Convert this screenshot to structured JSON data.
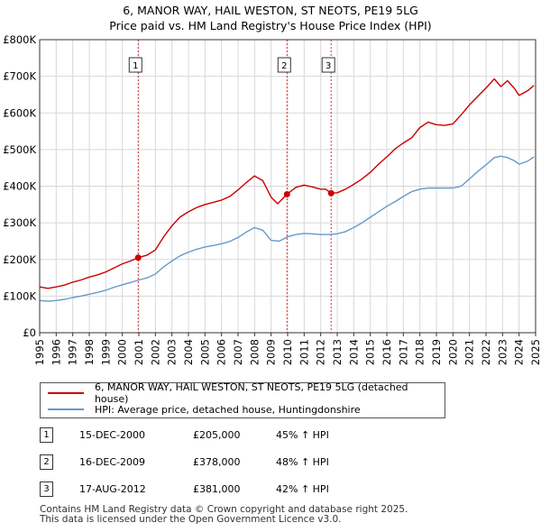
{
  "title": {
    "line1": "6, MANOR WAY, HAIL WESTON, ST NEOTS, PE19 5LG",
    "line2": "Price paid vs. HM Land Registry's House Price Index (HPI)"
  },
  "colors": {
    "property": "#cc0000",
    "hpi": "#6699cc",
    "vline": "#cc0000"
  },
  "chart_data": {
    "type": "line",
    "title": "6, MANOR WAY, HAIL WESTON, ST NEOTS, PE19 5LG — Price paid vs. HM Land Registry's House Price Index (HPI)",
    "xlabel": "",
    "ylabel": "",
    "xlim": [
      1995.0,
      2025.0
    ],
    "ylim": [
      0,
      800000
    ],
    "grid": true,
    "yticks": [
      {
        "value": 0,
        "label": "£0"
      },
      {
        "value": 100000,
        "label": "£100K"
      },
      {
        "value": 200000,
        "label": "£200K"
      },
      {
        "value": 300000,
        "label": "£300K"
      },
      {
        "value": 400000,
        "label": "£400K"
      },
      {
        "value": 500000,
        "label": "£500K"
      },
      {
        "value": 600000,
        "label": "£600K"
      },
      {
        "value": 700000,
        "label": "£700K"
      },
      {
        "value": 800000,
        "label": "£800K"
      }
    ],
    "xticks": [
      "1995",
      "1996",
      "1997",
      "1998",
      "1999",
      "2000",
      "2001",
      "2002",
      "2003",
      "2004",
      "2005",
      "2006",
      "2007",
      "2008",
      "2009",
      "2010",
      "2011",
      "2012",
      "2013",
      "2014",
      "2015",
      "2016",
      "2017",
      "2018",
      "2019",
      "2020",
      "2021",
      "2022",
      "2023",
      "2024",
      "2025"
    ],
    "series": [
      {
        "name": "6, MANOR WAY, HAIL WESTON, ST NEOTS, PE19 5LG (detached house)",
        "color": "#cc0000",
        "x": [
          1995.0,
          1995.5,
          1996.0,
          1996.5,
          1997.0,
          1997.5,
          1998.0,
          1998.5,
          1999.0,
          1999.5,
          2000.0,
          2000.5,
          2000.96,
          2001.5,
          2002.0,
          2002.5,
          2003.0,
          2003.5,
          2004.0,
          2004.5,
          2005.0,
          2005.5,
          2006.0,
          2006.5,
          2007.0,
          2007.5,
          2008.0,
          2008.5,
          2009.0,
          2009.4,
          2009.96,
          2010.5,
          2011.0,
          2011.5,
          2012.0,
          2012.3,
          2012.63,
          2013.0,
          2013.5,
          2014.0,
          2014.5,
          2015.0,
          2015.5,
          2016.0,
          2016.5,
          2017.0,
          2017.5,
          2018.0,
          2018.5,
          2019.0,
          2019.5,
          2020.0,
          2020.5,
          2021.0,
          2021.5,
          2022.0,
          2022.5,
          2022.9,
          2023.3,
          2023.7,
          2024.0,
          2024.5,
          2024.9
        ],
        "y": [
          125000,
          121000,
          125000,
          130000,
          138000,
          144000,
          152000,
          158000,
          166000,
          177000,
          188000,
          196000,
          205000,
          212000,
          226000,
          262000,
          292000,
          316000,
          330000,
          342000,
          350000,
          356000,
          362000,
          372000,
          390000,
          410000,
          428000,
          415000,
          370000,
          352000,
          378000,
          397000,
          403000,
          398000,
          392000,
          392000,
          381000,
          382000,
          392000,
          405000,
          420000,
          438000,
          460000,
          480000,
          502000,
          518000,
          532000,
          560000,
          575000,
          568000,
          566000,
          570000,
          595000,
          622000,
          645000,
          668000,
          693000,
          672000,
          688000,
          668000,
          648000,
          660000,
          675000
        ]
      },
      {
        "name": "HPI: Average price, detached house, Huntingdonshire",
        "color": "#6699cc",
        "x": [
          1995.0,
          1995.5,
          1996.0,
          1996.5,
          1997.0,
          1997.5,
          1998.0,
          1998.5,
          1999.0,
          1999.5,
          2000.0,
          2000.5,
          2001.0,
          2001.5,
          2002.0,
          2002.5,
          2003.0,
          2003.5,
          2004.0,
          2004.5,
          2005.0,
          2005.5,
          2006.0,
          2006.5,
          2007.0,
          2007.5,
          2008.0,
          2008.5,
          2009.0,
          2009.5,
          2010.0,
          2010.5,
          2011.0,
          2011.5,
          2012.0,
          2012.5,
          2013.0,
          2013.5,
          2014.0,
          2014.5,
          2015.0,
          2015.5,
          2016.0,
          2016.5,
          2017.0,
          2017.5,
          2018.0,
          2018.5,
          2019.0,
          2019.5,
          2020.0,
          2020.5,
          2021.0,
          2021.5,
          2022.0,
          2022.5,
          2022.9,
          2023.3,
          2023.7,
          2024.0,
          2024.5,
          2024.9
        ],
        "y": [
          88000,
          86000,
          88000,
          91000,
          96000,
          100000,
          105000,
          110000,
          116000,
          124000,
          131000,
          137000,
          144000,
          150000,
          160000,
          180000,
          196000,
          210000,
          220000,
          228000,
          234000,
          238000,
          243000,
          249000,
          260000,
          275000,
          287000,
          280000,
          252000,
          250000,
          262000,
          268000,
          271000,
          270000,
          268000,
          268000,
          270000,
          276000,
          287000,
          300000,
          315000,
          330000,
          345000,
          358000,
          372000,
          385000,
          392000,
          395000,
          395000,
          395000,
          395000,
          400000,
          420000,
          440000,
          458000,
          478000,
          482000,
          478000,
          470000,
          460000,
          468000,
          480000
        ]
      }
    ],
    "markers": [
      {
        "id": "1",
        "x": 2000.96,
        "y": 205000
      },
      {
        "id": "2",
        "x": 2009.96,
        "y": 378000
      },
      {
        "id": "3",
        "x": 2012.63,
        "y": 381000
      }
    ]
  },
  "legend": {
    "property": "6, MANOR WAY, HAIL WESTON, ST NEOTS, PE19 5LG (detached house)",
    "hpi": "HPI: Average price, detached house, Huntingdonshire"
  },
  "sales": [
    {
      "num": "1",
      "date": "15-DEC-2000",
      "price": "£205,000",
      "hpi": "45% ↑ HPI"
    },
    {
      "num": "2",
      "date": "16-DEC-2009",
      "price": "£378,000",
      "hpi": "48% ↑ HPI"
    },
    {
      "num": "3",
      "date": "17-AUG-2012",
      "price": "£381,000",
      "hpi": "42% ↑ HPI"
    }
  ],
  "footer": {
    "line1": "Contains HM Land Registry data © Crown copyright and database right 2025.",
    "line2": "This data is licensed under the Open Government Licence v3.0."
  }
}
